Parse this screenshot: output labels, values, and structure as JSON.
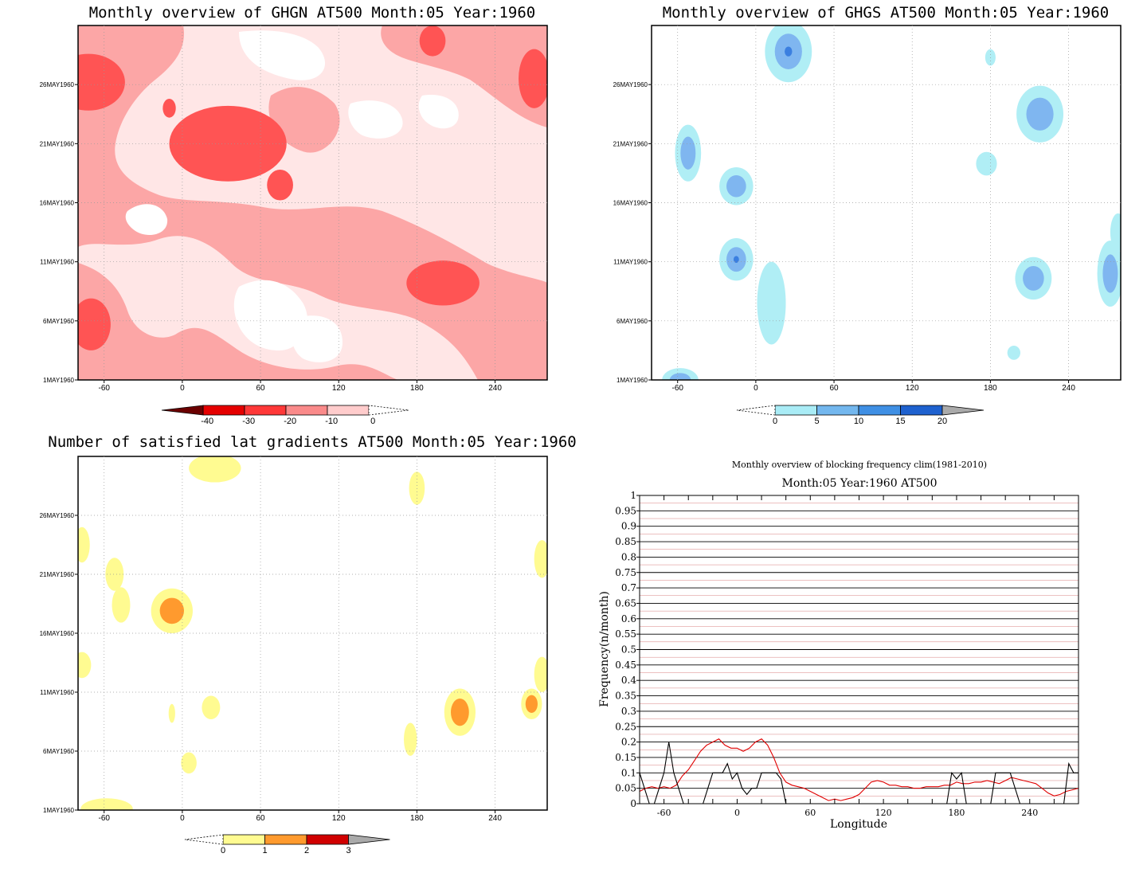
{
  "panels": {
    "ghgn": {
      "title": "Monthly overview of GHGN AT500 Month:05 Year:1960",
      "colorbar_labels": [
        "-40",
        "-30",
        "-20",
        "-10",
        "0"
      ],
      "colorbar_colors": [
        "#e50000",
        "#ff3838",
        "#fa8a8a",
        "#ffcccc"
      ]
    },
    "ghgs": {
      "title": "Monthly overview of GHGS AT500 Month:05 Year:1960",
      "colorbar_labels": [
        "0",
        "5",
        "10",
        "15",
        "20"
      ],
      "colorbar_colors": [
        "#a9ecf6",
        "#73b7ee",
        "#3f8fe4",
        "#1e61cf"
      ]
    },
    "gradients": {
      "title": "Number of satisfied lat gradients AT500 Month:05 Year:1960",
      "colorbar_labels": [
        "0",
        "1",
        "2",
        "3"
      ],
      "colorbar_colors": [
        "#fffb91",
        "#ff9a2e",
        "#d00000"
      ]
    },
    "freq": {
      "title": "Monthly overview of blocking frequency clim(1981-2010)",
      "subtitle": "Month:05 Year:1960  AT500",
      "ylabel": "Frequency(n/month)",
      "xlabel": "Longitude"
    }
  },
  "axes": {
    "lon_ticks": [
      "-60",
      "0",
      "60",
      "120",
      "180",
      "240"
    ],
    "date_ticks": [
      "1MAY1960",
      "6MAY1960",
      "11MAY1960",
      "16MAY1960",
      "21MAY1960",
      "26MAY1960"
    ]
  },
  "chart_data": [
    {
      "type": "heatmap",
      "title": "Monthly overview of GHGN AT500 Month:05 Year:1960",
      "x_range": [
        -80,
        280
      ],
      "y_range": [
        "1MAY1960",
        "31MAY1960"
      ],
      "levels": [
        -40,
        -30,
        -20,
        -10,
        0
      ],
      "blobs": [
        {
          "lon": -72,
          "day": 26.2,
          "rlon": 28,
          "rday": 2.4,
          "level": 2
        },
        {
          "lon": 35,
          "day": 21,
          "rlon": 45,
          "rday": 3.2,
          "level": 2
        },
        {
          "lon": -70,
          "day": 5.7,
          "rlon": 15,
          "rday": 2.2,
          "level": 2
        },
        {
          "lon": 200,
          "day": 9.2,
          "rlon": 28,
          "rday": 1.9,
          "level": 2
        },
        {
          "lon": 270,
          "day": 26.5,
          "rlon": 12,
          "rday": 2.5,
          "level": 2
        },
        {
          "lon": 75,
          "day": 17.5,
          "rlon": 10,
          "rday": 1.3,
          "level": 2
        },
        {
          "lon": 192,
          "day": 29.7,
          "rlon": 10,
          "rday": 1.3,
          "level": 2
        },
        {
          "lon": -10,
          "day": 24,
          "rlon": 5,
          "rday": 0.8,
          "level": 2
        }
      ]
    },
    {
      "type": "heatmap",
      "title": "Monthly overview of GHGS AT500 Month:05 Year:1960",
      "x_range": [
        -80,
        280
      ],
      "y_range": [
        "1MAY1960",
        "31MAY1960"
      ],
      "levels": [
        0,
        5,
        10,
        15,
        20
      ],
      "blobs": [
        {
          "lon": 25,
          "day": 28.8,
          "rlon": 18,
          "rday": 2.6,
          "level": 3
        },
        {
          "lon": -15,
          "day": 17.4,
          "rlon": 13,
          "rday": 1.6,
          "level": 2
        },
        {
          "lon": -15,
          "day": 11.2,
          "rlon": 13,
          "rday": 1.8,
          "level": 3
        },
        {
          "lon": -52,
          "day": 20.2,
          "rlon": 10,
          "rday": 2.4,
          "level": 2
        },
        {
          "lon": 218,
          "day": 23.5,
          "rlon": 18,
          "rday": 2.4,
          "level": 2
        },
        {
          "lon": 213,
          "day": 9.6,
          "rlon": 14,
          "rday": 1.8,
          "level": 2
        },
        {
          "lon": 272,
          "day": 10,
          "rlon": 10,
          "rday": 2.8,
          "level": 2
        },
        {
          "lon": -58,
          "day": 1.0,
          "rlon": 14,
          "rday": 1.0,
          "level": 2
        },
        {
          "lon": 12,
          "day": 7.5,
          "rlon": 11,
          "rday": 3.5,
          "level": 1
        },
        {
          "lon": 177,
          "day": 19.3,
          "rlon": 8,
          "rday": 1.0,
          "level": 1
        },
        {
          "lon": 180,
          "day": 28.3,
          "rlon": 4,
          "rday": 0.7,
          "level": 1
        },
        {
          "lon": 278,
          "day": 13.5,
          "rlon": 6,
          "rday": 1.6,
          "level": 1
        },
        {
          "lon": 198,
          "day": 3.3,
          "rlon": 5,
          "rday": 0.6,
          "level": 1
        }
      ]
    },
    {
      "type": "heatmap",
      "title": "Number of satisfied lat gradients AT500 Month:05 Year:1960",
      "x_range": [
        -80,
        280
      ],
      "y_range": [
        "1MAY1960",
        "31MAY1960"
      ],
      "levels": [
        0,
        1,
        2,
        3
      ],
      "blobs": [
        {
          "lon": -8,
          "day": 17.9,
          "rlon": 16,
          "rday": 1.9,
          "level": 2
        },
        {
          "lon": 213,
          "day": 9.3,
          "rlon": 12,
          "rday": 2.0,
          "level": 2
        },
        {
          "lon": 268,
          "day": 10.0,
          "rlon": 8,
          "rday": 1.3,
          "level": 2
        },
        {
          "lon": 25,
          "day": 30.0,
          "rlon": 20,
          "rday": 1.2,
          "level": 1
        },
        {
          "lon": 180,
          "day": 28.3,
          "rlon": 6,
          "rday": 1.4,
          "level": 1
        },
        {
          "lon": -47,
          "day": 18.4,
          "rlon": 7,
          "rday": 1.5,
          "level": 1
        },
        {
          "lon": -52,
          "day": 21,
          "rlon": 7,
          "rday": 1.4,
          "level": 1
        },
        {
          "lon": 22,
          "day": 9.7,
          "rlon": 7,
          "rday": 1.0,
          "level": 1
        },
        {
          "lon": 5,
          "day": 5,
          "rlon": 6,
          "rday": 0.9,
          "level": 1
        },
        {
          "lon": -58,
          "day": 1.1,
          "rlon": 20,
          "rday": 0.9,
          "level": 1
        },
        {
          "lon": 175,
          "day": 7,
          "rlon": 5,
          "rday": 1.4,
          "level": 1
        },
        {
          "lon": -77,
          "day": 23.5,
          "rlon": 6,
          "rday": 1.5,
          "level": 1
        },
        {
          "lon": -77,
          "day": 13.3,
          "rlon": 7,
          "rday": 1.1,
          "level": 1
        },
        {
          "lon": 276,
          "day": 12.5,
          "rlon": 6,
          "rday": 1.5,
          "level": 1
        },
        {
          "lon": 276,
          "day": 22.3,
          "rlon": 6,
          "rday": 1.6,
          "level": 1
        },
        {
          "lon": -8,
          "day": 9.2,
          "rlon": 2.5,
          "rday": 0.8,
          "level": 1
        }
      ]
    },
    {
      "type": "line",
      "title": "Monthly overview of blocking frequency clim(1981-2010)",
      "subtitle": "Month:05 Year:1960  AT500",
      "xlabel": "Longitude",
      "ylabel": "Frequency(n/month)",
      "xlim": [
        -80,
        280
      ],
      "ylim": [
        0,
        1
      ],
      "yticks": [
        "0",
        "0.05",
        "0.1",
        "0.15",
        "0.2",
        "0.25",
        "0.3",
        "0.35",
        "0.4",
        "0.45",
        "0.5",
        "0.55",
        "0.6",
        "0.65",
        "0.7",
        "0.75",
        "0.8",
        "0.85",
        "0.9",
        "0.95",
        "1"
      ],
      "series": [
        {
          "color": "#e00000",
          "x": [
            -80,
            -75,
            -70,
            -65,
            -60,
            -55,
            -50,
            -45,
            -40,
            -35,
            -30,
            -25,
            -20,
            -15,
            -10,
            -5,
            0,
            5,
            10,
            15,
            20,
            25,
            30,
            35,
            40,
            45,
            50,
            55,
            60,
            65,
            70,
            75,
            80,
            85,
            90,
            95,
            100,
            105,
            110,
            115,
            120,
            125,
            130,
            135,
            140,
            145,
            150,
            155,
            160,
            165,
            170,
            175,
            180,
            185,
            190,
            195,
            200,
            205,
            210,
            215,
            220,
            225,
            230,
            235,
            240,
            245,
            250,
            255,
            260,
            265,
            270,
            275,
            280
          ],
          "y": [
            0.04,
            0.05,
            0.055,
            0.05,
            0.055,
            0.05,
            0.06,
            0.09,
            0.11,
            0.14,
            0.17,
            0.19,
            0.2,
            0.21,
            0.19,
            0.18,
            0.18,
            0.17,
            0.18,
            0.2,
            0.21,
            0.19,
            0.15,
            0.1,
            0.07,
            0.06,
            0.055,
            0.05,
            0.04,
            0.03,
            0.02,
            0.01,
            0.015,
            0.01,
            0.015,
            0.02,
            0.03,
            0.05,
            0.07,
            0.075,
            0.07,
            0.06,
            0.06,
            0.055,
            0.055,
            0.05,
            0.05,
            0.055,
            0.055,
            0.055,
            0.06,
            0.06,
            0.07,
            0.065,
            0.065,
            0.07,
            0.07,
            0.075,
            0.07,
            0.065,
            0.075,
            0.085,
            0.08,
            0.075,
            0.07,
            0.065,
            0.05,
            0.035,
            0.025,
            0.03,
            0.04,
            0.045,
            0.05
          ]
        },
        {
          "color": "#000000",
          "x": [
            -80,
            -76,
            -72,
            -68,
            -64,
            -60,
            -56,
            -52,
            -48,
            -44,
            -40,
            -36,
            -32,
            -28,
            -24,
            -20,
            -16,
            -12,
            -8,
            -4,
            0,
            4,
            8,
            12,
            16,
            20,
            24,
            28,
            32,
            36,
            40,
            44,
            48,
            52,
            56,
            60,
            64,
            68,
            72,
            76,
            80,
            84,
            88,
            92,
            96,
            100,
            104,
            108,
            112,
            116,
            120,
            124,
            128,
            132,
            136,
            140,
            144,
            148,
            152,
            156,
            160,
            164,
            168,
            172,
            176,
            180,
            184,
            188,
            192,
            196,
            200,
            204,
            208,
            212,
            216,
            220,
            224,
            228,
            232,
            236,
            240,
            244,
            248,
            252,
            256,
            260,
            264,
            268,
            272,
            276,
            280
          ],
          "y": [
            0.1,
            0.05,
            0.0,
            0.0,
            0.05,
            0.1,
            0.2,
            0.1,
            0.05,
            0.0,
            0.0,
            0.0,
            0.0,
            0.0,
            0.05,
            0.1,
            0.1,
            0.1,
            0.13,
            0.08,
            0.1,
            0.05,
            0.03,
            0.05,
            0.05,
            0.1,
            0.1,
            0.1,
            0.1,
            0.08,
            0.0,
            0.0,
            0.0,
            0.0,
            0.0,
            0.0,
            0.0,
            0.0,
            0.0,
            0.0,
            0.0,
            0.0,
            0.0,
            0.0,
            0.0,
            0.0,
            0.0,
            0.0,
            0.0,
            0.0,
            0.0,
            0.0,
            0.0,
            0.0,
            0.0,
            0.0,
            0.0,
            0.0,
            0.0,
            0.0,
            0.0,
            0.0,
            0.0,
            0.0,
            0.1,
            0.08,
            0.1,
            0.0,
            0.0,
            0.0,
            0.0,
            0.0,
            0.0,
            0.1,
            0.1,
            0.1,
            0.1,
            0.05,
            0.0,
            0.0,
            0.0,
            0.0,
            0.0,
            0.0,
            0.0,
            0.0,
            0.0,
            0.0,
            0.13,
            0.1,
            0.1
          ]
        }
      ]
    }
  ]
}
